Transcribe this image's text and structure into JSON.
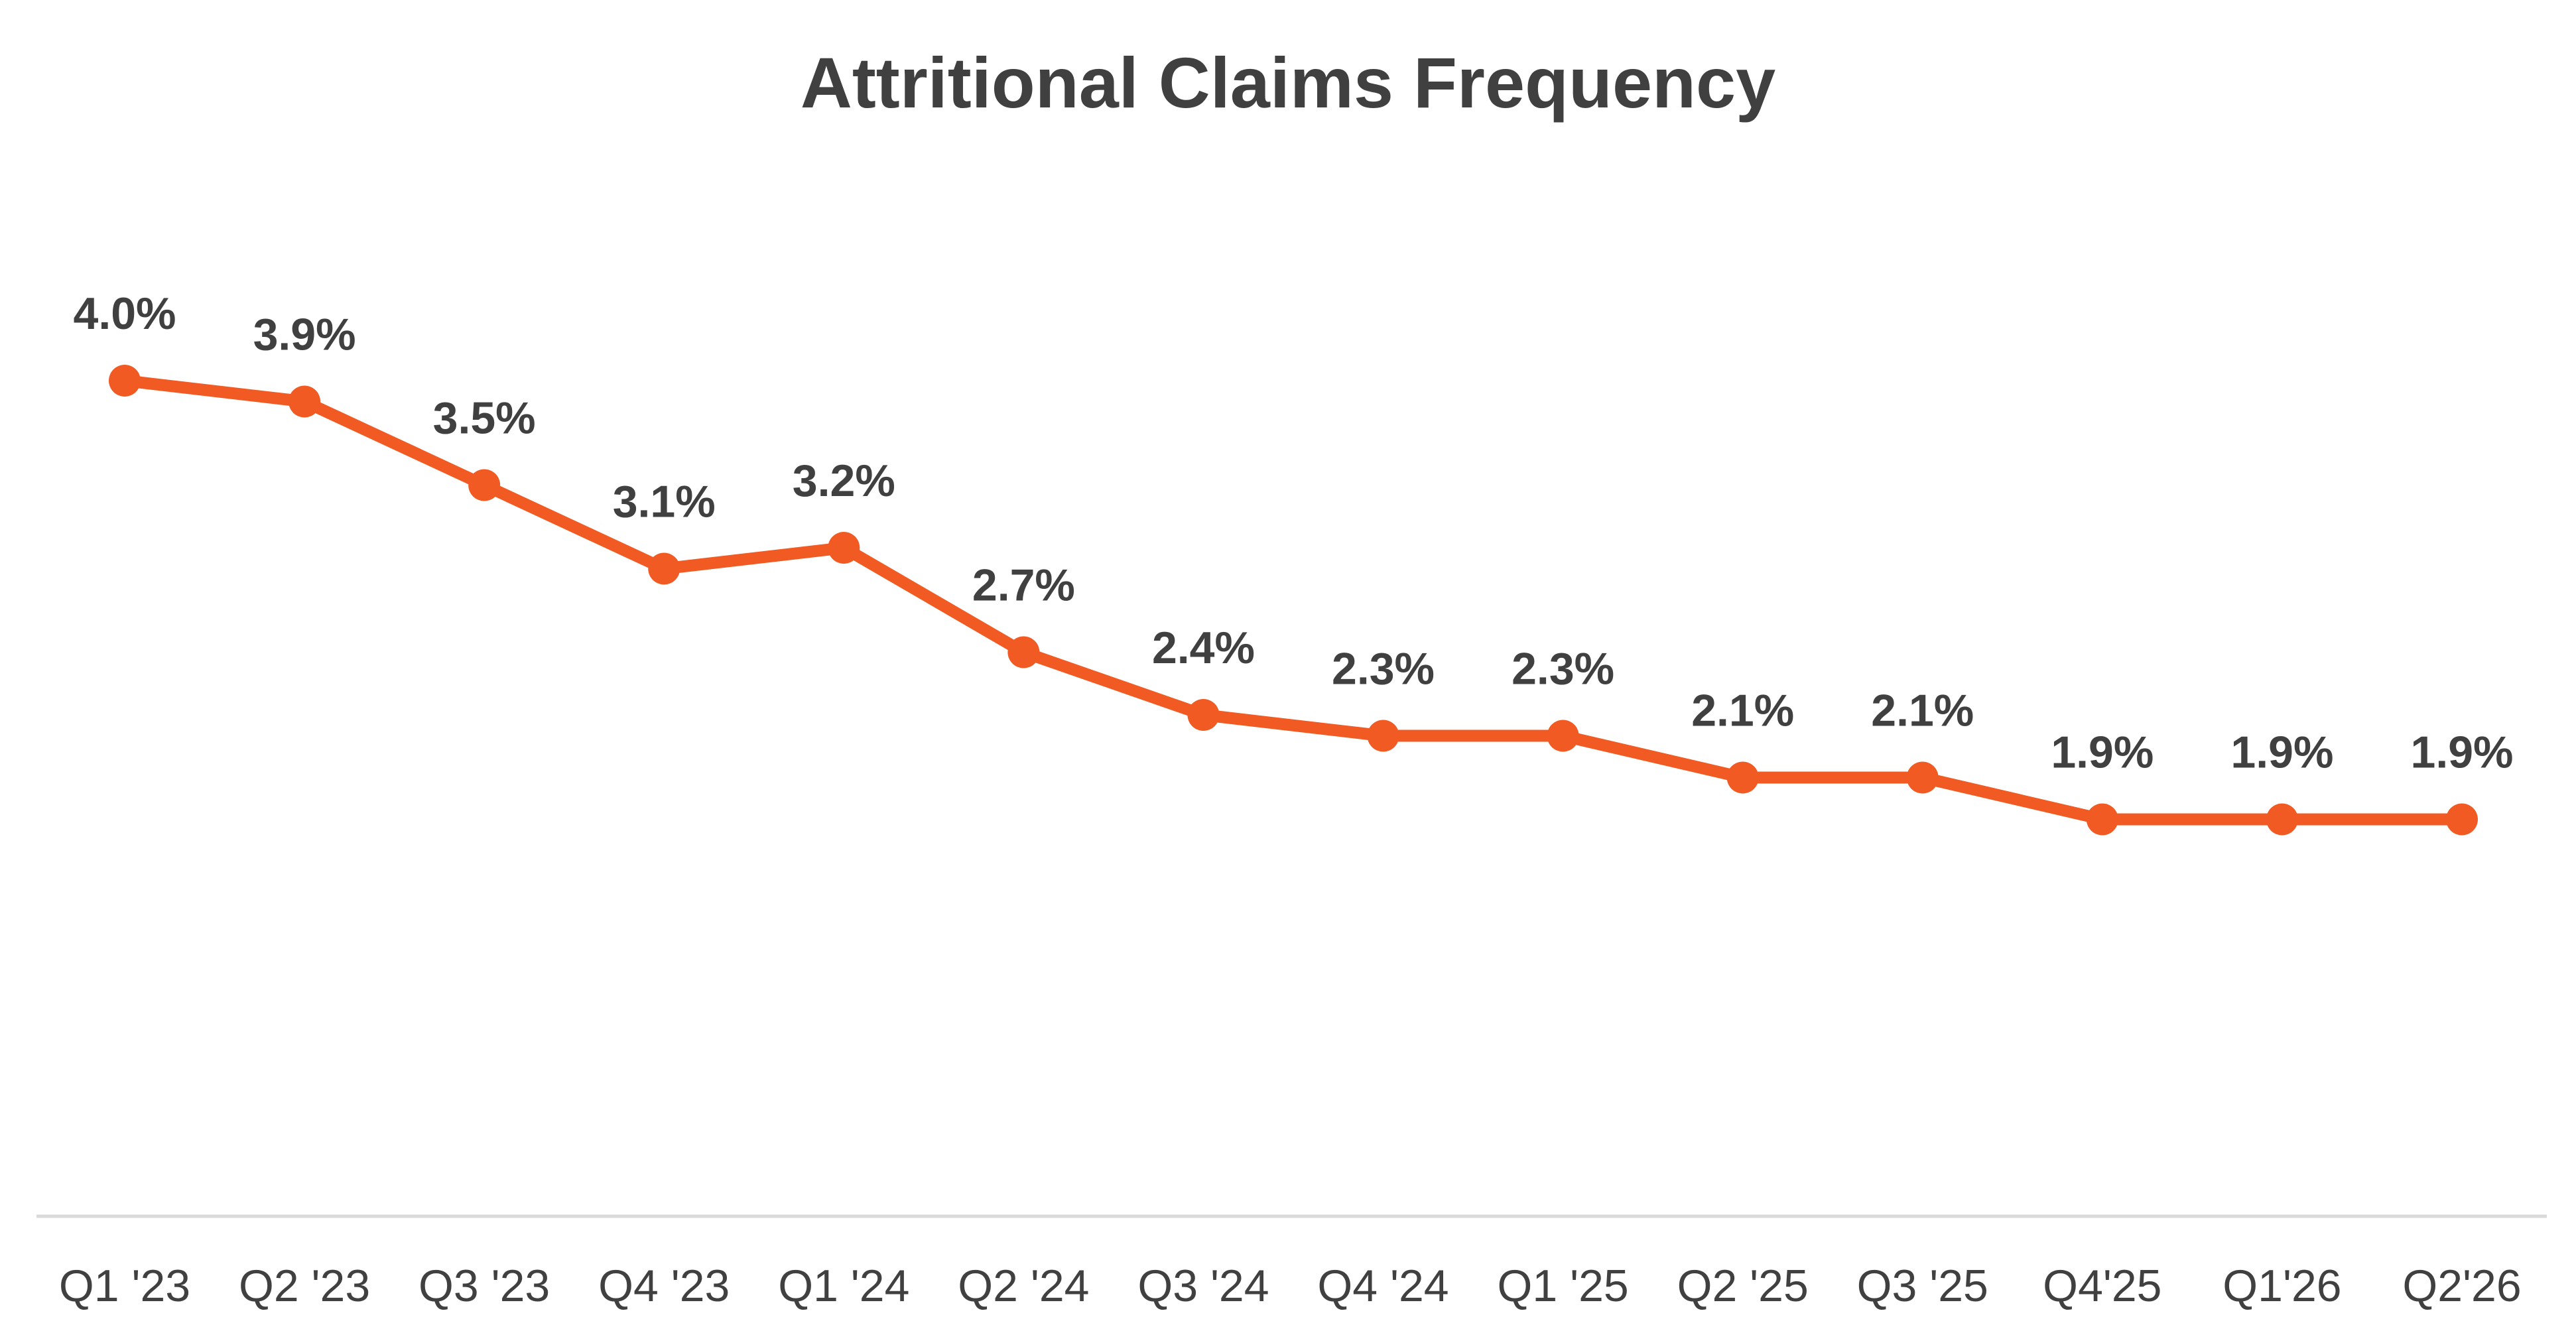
{
  "chart_data": {
    "type": "line",
    "title": "Attritional Claims Frequency",
    "categories": [
      "Q1 '23",
      "Q2 '23",
      "Q3 '23",
      "Q4 '23",
      "Q1 '24",
      "Q2 '24",
      "Q3 '24",
      "Q4 '24",
      "Q1 '25",
      "Q2 '25",
      "Q3 '25",
      "Q4'25",
      "Q1'26",
      "Q2'26"
    ],
    "series": [
      {
        "values": [
          4.0,
          3.9,
          3.5,
          3.1,
          3.2,
          2.7,
          2.4,
          2.3,
          2.3,
          2.1,
          2.1,
          1.9,
          1.9,
          1.9
        ],
        "data_labels": [
          "4.0%",
          "3.9%",
          "3.5%",
          "3.1%",
          "3.2%",
          "2.7%",
          "2.4%",
          "2.3%",
          "2.3%",
          "2.1%",
          "2.1%",
          "1.9%",
          "1.9%",
          "1.9%"
        ],
        "color": "#F15A22"
      }
    ],
    "xlabel": "",
    "ylabel": "",
    "ylim": [
      0,
      6
    ],
    "y_axis_visible": false,
    "grid": false,
    "legend": "none",
    "axis_line_color": "#D9D9D9",
    "text_color": "#404040"
  }
}
